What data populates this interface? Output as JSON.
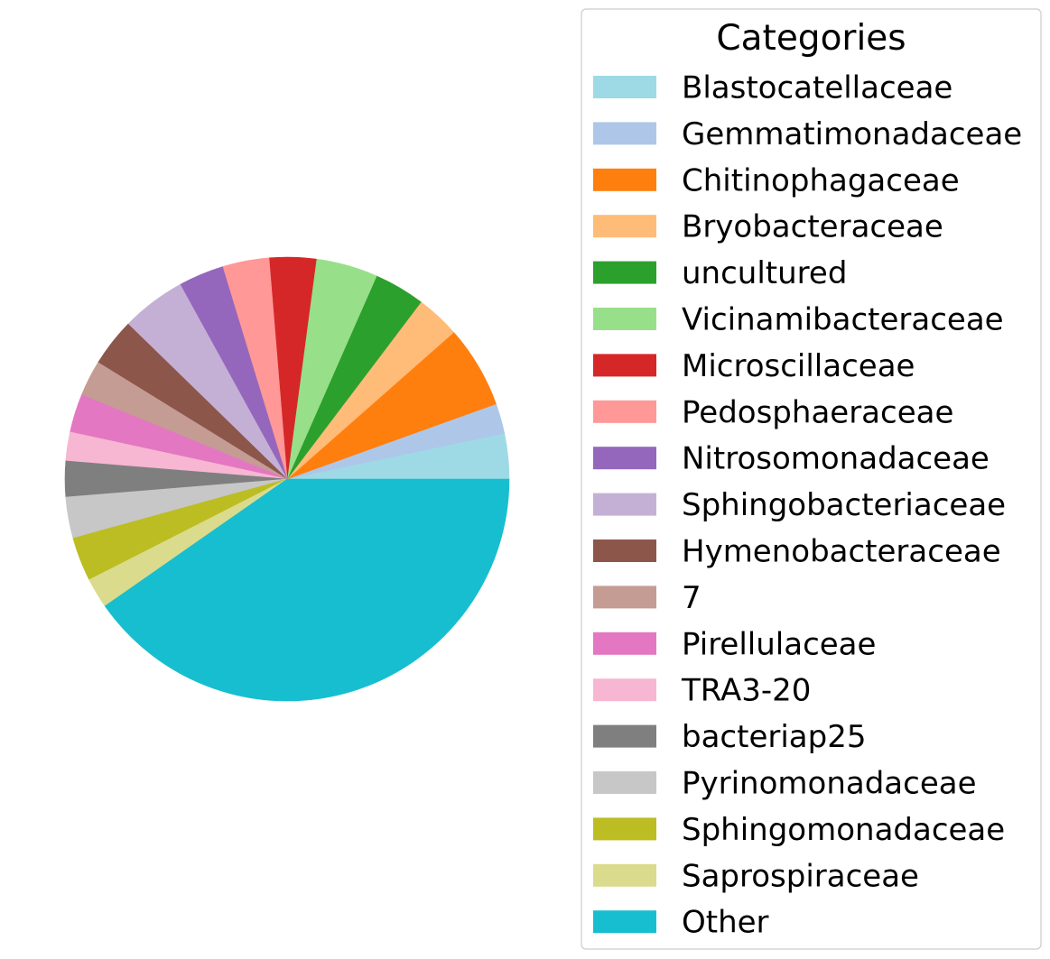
{
  "chart_data": {
    "type": "pie",
    "start_angle_deg": 0,
    "direction": "counterclockwise",
    "legend": {
      "title": "Categories",
      "placement": "right"
    },
    "slices": [
      {
        "label": "Blastocatellaceae",
        "value": 3.3,
        "color": "#9edae5"
      },
      {
        "label": "Gemmatimonadaceae",
        "value": 2.2,
        "color": "#aec7e8"
      },
      {
        "label": "Chitinophagaceae",
        "value": 6.0,
        "color": "#ff7f0e"
      },
      {
        "label": "Bryobacteraceae",
        "value": 3.2,
        "color": "#ffbb78"
      },
      {
        "label": "uncultured",
        "value": 3.7,
        "color": "#2ca02c"
      },
      {
        "label": "Vicinamibacteraceae",
        "value": 4.5,
        "color": "#98df8a"
      },
      {
        "label": "Microscillaceae",
        "value": 3.4,
        "color": "#d62728"
      },
      {
        "label": "Pedosphaeraceae",
        "value": 3.4,
        "color": "#ff9896"
      },
      {
        "label": "Nitrosomonadaceae",
        "value": 3.3,
        "color": "#9467bd"
      },
      {
        "label": "Sphingobacteriaceae",
        "value": 4.7,
        "color": "#c5b0d5"
      },
      {
        "label": "Hymenobacteraceae",
        "value": 3.5,
        "color": "#8c564b"
      },
      {
        "label": "7",
        "value": 2.6,
        "color": "#c49c94"
      },
      {
        "label": "Pirellulaceae",
        "value": 2.8,
        "color": "#e377c2"
      },
      {
        "label": "TRA3-20",
        "value": 2.1,
        "color": "#f7b6d2"
      },
      {
        "label": "bacteriap25",
        "value": 2.6,
        "color": "#7f7f7f"
      },
      {
        "label": "Pyrinomonadaceae",
        "value": 3.0,
        "color": "#c7c7c7"
      },
      {
        "label": "Sphingomonadaceae",
        "value": 3.2,
        "color": "#bcbd22"
      },
      {
        "label": "Saprospiraceae",
        "value": 2.2,
        "color": "#dbdb8d"
      },
      {
        "label": "Other",
        "value": 40.3,
        "color": "#17becf"
      }
    ]
  }
}
